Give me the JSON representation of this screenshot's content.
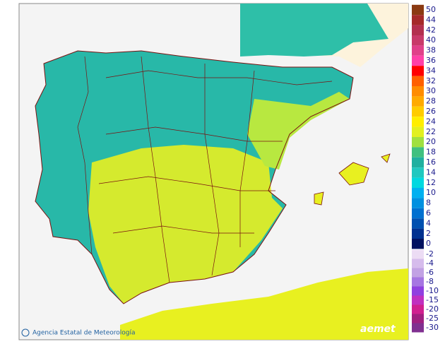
{
  "legend": {
    "items": [
      {
        "value": 50,
        "color": "#8b3a12"
      },
      {
        "value": 44,
        "color": "#a52a2a"
      },
      {
        "value": 42,
        "color": "#b3304f"
      },
      {
        "value": 40,
        "color": "#c83a6a"
      },
      {
        "value": 38,
        "color": "#e0408a"
      },
      {
        "value": 36,
        "color": "#ff40a8"
      },
      {
        "value": 34,
        "color": "#ff0000"
      },
      {
        "value": 32,
        "color": "#ff6000"
      },
      {
        "value": 30,
        "color": "#ff8c00"
      },
      {
        "value": 28,
        "color": "#ffaa00"
      },
      {
        "value": 26,
        "color": "#ffcc00"
      },
      {
        "value": 24,
        "color": "#ffee00"
      },
      {
        "value": 22,
        "color": "#e2f020"
      },
      {
        "value": 20,
        "color": "#a0e040"
      },
      {
        "value": 18,
        "color": "#40c080"
      },
      {
        "value": 16,
        "color": "#20b0a0"
      },
      {
        "value": 14,
        "color": "#20c8c0"
      },
      {
        "value": 12,
        "color": "#00d8e0"
      },
      {
        "value": 10,
        "color": "#00b0f0"
      },
      {
        "value": 8,
        "color": "#0090e0"
      },
      {
        "value": 6,
        "color": "#0070d0"
      },
      {
        "value": 4,
        "color": "#0050b0"
      },
      {
        "value": 2,
        "color": "#003090"
      },
      {
        "value": 0,
        "color": "#001060"
      }
    ],
    "negative_items": [
      {
        "value": -2,
        "color": "#ecdcf4"
      },
      {
        "value": -4,
        "color": "#d6bcec"
      },
      {
        "value": -6,
        "color": "#c2a2e4"
      },
      {
        "value": -8,
        "color": "#a676e2"
      },
      {
        "value": -10,
        "color": "#9040e0"
      },
      {
        "value": -15,
        "color": "#c030c0"
      },
      {
        "value": -20,
        "color": "#d02090"
      },
      {
        "value": -25,
        "color": "#a02080"
      },
      {
        "value": -30,
        "color": "#803090"
      }
    ]
  },
  "footer": {
    "agency": "Agencia Estatal de Meteorología",
    "logo": "aemet"
  }
}
